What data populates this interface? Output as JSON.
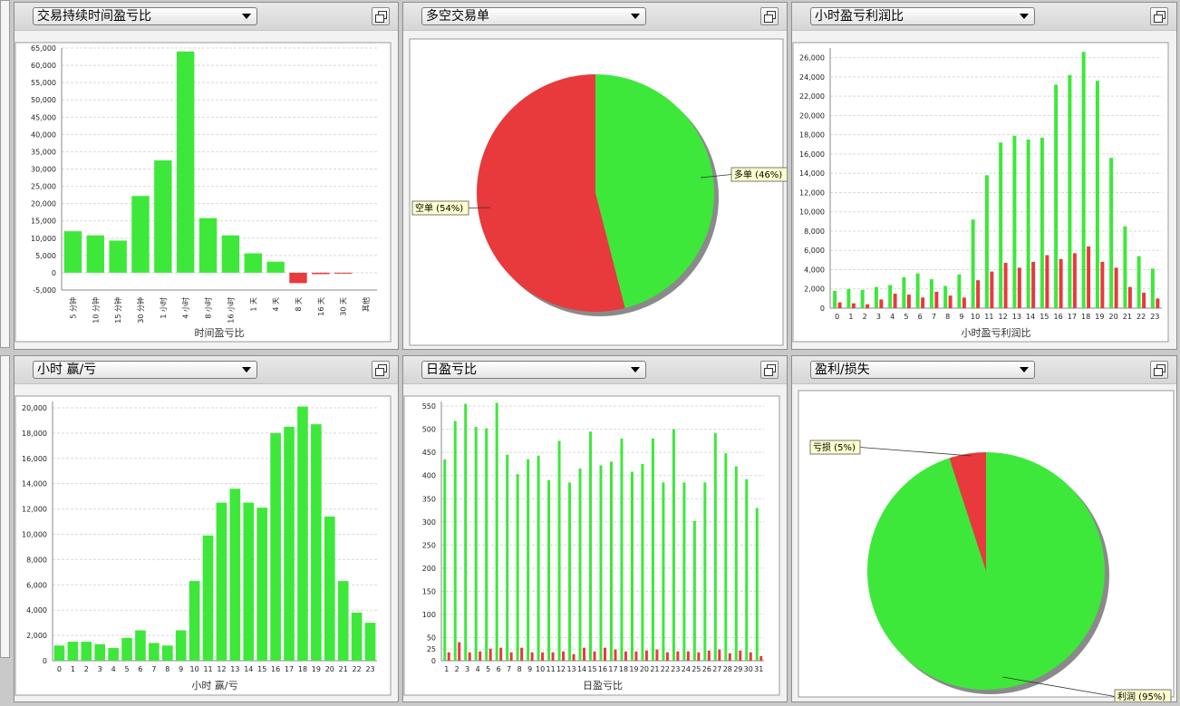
{
  "colors": {
    "profit": "#3de83a",
    "loss": "#e8393c",
    "grid": "#d9d9d9",
    "label_bg": "#ffffcc"
  },
  "panels": [
    {
      "id": "p1",
      "dropdown": "交易持续时间盈亏比",
      "chart_data": {
        "type": "bar",
        "xlabel": "时间盈亏比",
        "categories": [
          "5 分钟",
          "10 分钟",
          "15 分钟",
          "30 分钟",
          "1 小时",
          "4 小时",
          "8 小时",
          "16 小时",
          "1 天",
          "4 天",
          "8 天",
          "16 天",
          "30 天",
          "其他"
        ],
        "values": [
          12000,
          10800,
          9300,
          22200,
          32500,
          64000,
          15800,
          10800,
          5600,
          3200,
          -3000,
          -400,
          -200,
          0
        ],
        "ylim": [
          -5000,
          65000
        ],
        "yticks": [
          -5000,
          0,
          5000,
          10000,
          15000,
          20000,
          25000,
          30000,
          35000,
          40000,
          45000,
          50000,
          55000,
          60000,
          65000
        ],
        "ytick_labels": [
          "-5,000",
          "0",
          "5,000",
          "10,000",
          "15,000",
          "20,000",
          "25,000",
          "30,000",
          "35,000",
          "40,000",
          "45,000",
          "50,000",
          "55,000",
          "60,000",
          "65,000"
        ],
        "grid": true
      }
    },
    {
      "id": "p2",
      "dropdown": "多空交易单",
      "chart_data": {
        "type": "pie",
        "slices": [
          {
            "label": "多单 (46%)",
            "value": 46,
            "color": "#3de83a"
          },
          {
            "label": "空单 (54%)",
            "value": 54,
            "color": "#e8393c"
          }
        ]
      }
    },
    {
      "id": "p3",
      "dropdown": "小时盈亏利润比",
      "chart_data": {
        "type": "bar",
        "xlabel": "小时盈亏利润比",
        "categories": [
          "0",
          "1",
          "2",
          "3",
          "4",
          "5",
          "6",
          "7",
          "8",
          "9",
          "10",
          "11",
          "12",
          "13",
          "14",
          "15",
          "16",
          "17",
          "18",
          "19",
          "20",
          "21",
          "22",
          "23"
        ],
        "series": [
          {
            "values": [
              1800,
              2000,
              1900,
              2200,
              2400,
              3200,
              3600,
              3000,
              2300,
              3500,
              9200,
              13800,
              17200,
              17900,
              17500,
              17700,
              23200,
              24200,
              26600,
              23600,
              15600,
              8500,
              5400,
              4100
            ],
            "color": "#3de83a"
          },
          {
            "values": [
              600,
              500,
              400,
              900,
              1500,
              1400,
              1100,
              1700,
              1300,
              1100,
              2900,
              3800,
              4700,
              4200,
              4800,
              5500,
              5100,
              5700,
              6400,
              4800,
              4200,
              2200,
              1600,
              1000
            ],
            "color": "#e8393c"
          }
        ],
        "ylim": [
          0,
          27000
        ],
        "yticks": [
          0,
          2000,
          4000,
          6000,
          8000,
          10000,
          12000,
          14000,
          16000,
          18000,
          20000,
          22000,
          24000,
          26000
        ],
        "ytick_labels": [
          "0",
          "2,000",
          "4,000",
          "6,000",
          "8,000",
          "10,000",
          "12,000",
          "14,000",
          "16,000",
          "18,000",
          "20,000",
          "22,000",
          "24,000",
          "26,000"
        ],
        "grid": true
      }
    },
    {
      "id": "p4",
      "dropdown": "小时 赢/亏",
      "chart_data": {
        "type": "bar",
        "xlabel": "小时 赢/亏",
        "categories": [
          "0",
          "1",
          "2",
          "3",
          "4",
          "5",
          "6",
          "7",
          "8",
          "9",
          "10",
          "11",
          "12",
          "13",
          "14",
          "15",
          "16",
          "17",
          "18",
          "19",
          "20",
          "21",
          "22",
          "23"
        ],
        "values": [
          1200,
          1500,
          1500,
          1300,
          1000,
          1800,
          2400,
          1400,
          1200,
          2400,
          6300,
          9900,
          12500,
          13600,
          12500,
          12100,
          18000,
          18500,
          20100,
          18700,
          11400,
          6300,
          3800,
          3000
        ],
        "ylim": [
          0,
          20500
        ],
        "yticks": [
          0,
          2000,
          4000,
          6000,
          8000,
          10000,
          12000,
          14000,
          16000,
          18000,
          20000
        ],
        "ytick_labels": [
          "0",
          "2,000",
          "4,000",
          "6,000",
          "8,000",
          "10,000",
          "12,000",
          "14,000",
          "16,000",
          "18,000",
          "20,000"
        ],
        "grid": true
      }
    },
    {
      "id": "p5",
      "dropdown": "日盈亏比",
      "chart_data": {
        "type": "bar",
        "xlabel": "日盈亏比",
        "categories": [
          "1",
          "2",
          "3",
          "4",
          "5",
          "6",
          "7",
          "8",
          "9",
          "10",
          "11",
          "12",
          "13",
          "14",
          "15",
          "16",
          "17",
          "18",
          "19",
          "20",
          "21",
          "22",
          "23",
          "24",
          "25",
          "26",
          "27",
          "28",
          "29",
          "30",
          "31"
        ],
        "series": [
          {
            "values": [
              435,
              518,
              555,
              505,
              502,
              557,
              445,
              403,
              435,
              443,
              390,
              475,
              385,
              415,
              495,
              422,
              430,
              480,
              408,
              425,
              480,
              385,
              500,
              385,
              302,
              385,
              492,
              448,
              420,
              392,
              330
            ],
            "color": "#3de83a"
          },
          {
            "values": [
              18,
              40,
              18,
              20,
              26,
              28,
              18,
              28,
              18,
              18,
              18,
              20,
              14,
              28,
              20,
              28,
              24,
              20,
              20,
              22,
              24,
              18,
              20,
              20,
              18,
              22,
              24,
              16,
              22,
              18,
              10
            ],
            "color": "#e8393c"
          }
        ],
        "ylim": [
          0,
          560
        ],
        "yticks": [
          0,
          25,
          50,
          100,
          150,
          200,
          250,
          300,
          350,
          400,
          450,
          500,
          550
        ],
        "ytick_labels": [
          "0",
          "25",
          "50",
          "100",
          "150",
          "200",
          "250",
          "300",
          "350",
          "400",
          "450",
          "500",
          "550"
        ],
        "grid": true
      }
    },
    {
      "id": "p6",
      "dropdown": "盈利/损失",
      "chart_data": {
        "type": "pie",
        "slices": [
          {
            "label": "利润 (95%)",
            "value": 95,
            "color": "#3de83a"
          },
          {
            "label": "亏损 (5%)",
            "value": 5,
            "color": "#e8393c"
          }
        ]
      }
    }
  ]
}
